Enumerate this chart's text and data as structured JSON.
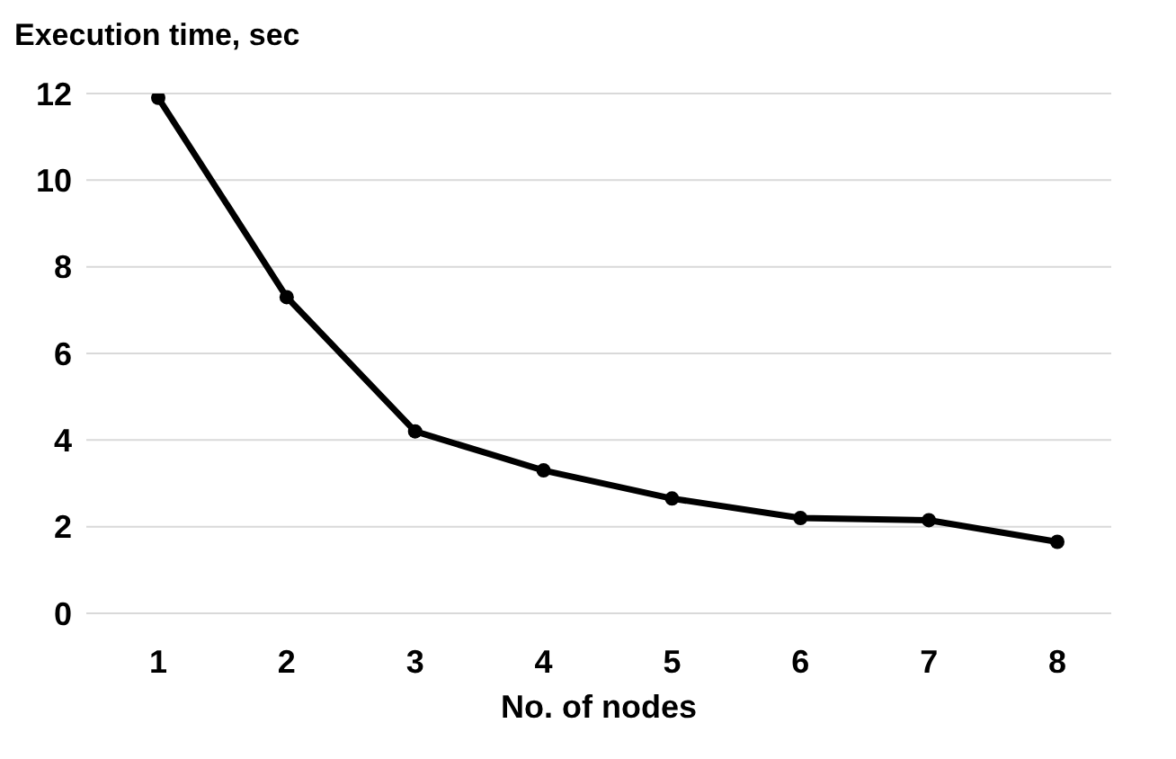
{
  "chart_data": {
    "type": "line",
    "title": "Execution time, sec",
    "xlabel": "No. of nodes",
    "categories": [
      "1",
      "2",
      "3",
      "4",
      "5",
      "6",
      "7",
      "8"
    ],
    "series": [
      {
        "color": "#000000",
        "values": [
          11.9,
          7.3,
          4.2,
          3.3,
          2.65,
          2.2,
          2.15,
          1.65
        ]
      }
    ],
    "ylim": [
      0,
      12
    ],
    "yticks": [
      0,
      2,
      4,
      6,
      8,
      10,
      12
    ],
    "grid": "y",
    "marker": "circle",
    "line_style": "solid"
  }
}
